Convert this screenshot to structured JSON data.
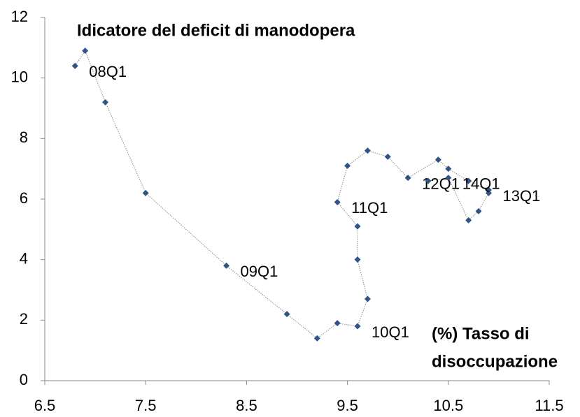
{
  "chart_data": {
    "type": "connected-scatter",
    "title": "Idicatore del deficit di manodopera",
    "x_label": [
      "(%) Tasso di",
      "disoccupazione"
    ],
    "x": [
      6.8,
      6.9,
      7.1,
      7.5,
      8.3,
      8.9,
      9.2,
      9.4,
      9.6,
      9.7,
      9.6,
      9.6,
      9.4,
      9.5,
      9.7,
      9.9,
      10.1,
      10.4,
      10.5,
      10.7,
      10.9,
      10.9,
      10.8,
      10.7,
      10.5,
      10.3
    ],
    "values": [
      10.4,
      10.9,
      9.2,
      6.2,
      3.8,
      2.2,
      1.4,
      1.9,
      1.8,
      2.7,
      4.0,
      5.1,
      5.9,
      7.1,
      7.6,
      7.4,
      6.7,
      7.3,
      7.0,
      6.6,
      6.3,
      6.2,
      5.6,
      5.3,
      6.7,
      6.6
    ],
    "point_labels": [
      "08Q1",
      null,
      null,
      null,
      "09Q1",
      null,
      null,
      null,
      "10Q1",
      null,
      null,
      null,
      "11Q1",
      null,
      null,
      null,
      "12Q1",
      null,
      null,
      null,
      "13Q1",
      null,
      null,
      null,
      "14Q1",
      null
    ],
    "color": "#2f5485",
    "line_color": "#8c8c8c",
    "xlim": [
      6.5,
      11.5
    ],
    "xticks": [
      6.5,
      7.5,
      8.5,
      9.5,
      10.5,
      11.5
    ],
    "ylim": [
      0,
      12
    ],
    "yticks": [
      0,
      2,
      4,
      6,
      8,
      10,
      12
    ],
    "grid": false
  }
}
